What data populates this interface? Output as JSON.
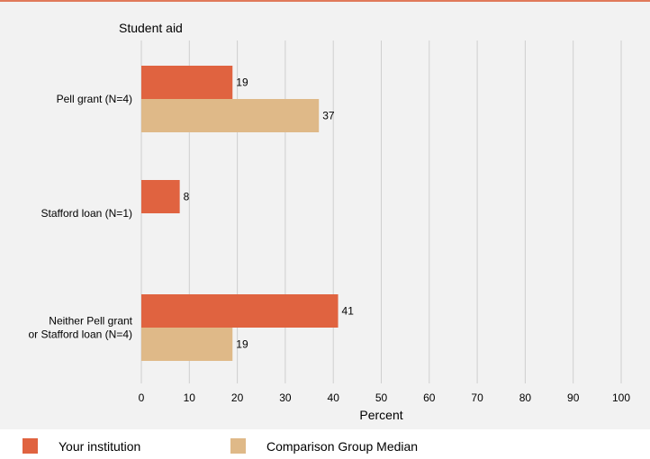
{
  "colors": {
    "your_institution": "#e06340",
    "comparison": "#dfb988"
  },
  "legend": {
    "your_institution": "Your institution",
    "comparison": "Comparison Group Median"
  },
  "chart_data": {
    "type": "bar",
    "orientation": "horizontal",
    "title": "Student aid",
    "xlabel": "Percent",
    "xlim": [
      0,
      100
    ],
    "x_ticks": [
      0,
      10,
      20,
      30,
      40,
      50,
      60,
      70,
      80,
      90,
      100
    ],
    "grid": true,
    "legend_position": "bottom",
    "categories": [
      [
        "Pell grant  (N=4)"
      ],
      [
        "Stafford loan (N=1)"
      ],
      [
        "Neither Pell grant",
        "or Stafford loan (N=4)"
      ]
    ],
    "series": [
      {
        "name": "Your institution",
        "values": [
          19,
          8,
          41
        ]
      },
      {
        "name": "Comparison Group Median",
        "values": [
          37,
          null,
          19
        ]
      }
    ]
  }
}
